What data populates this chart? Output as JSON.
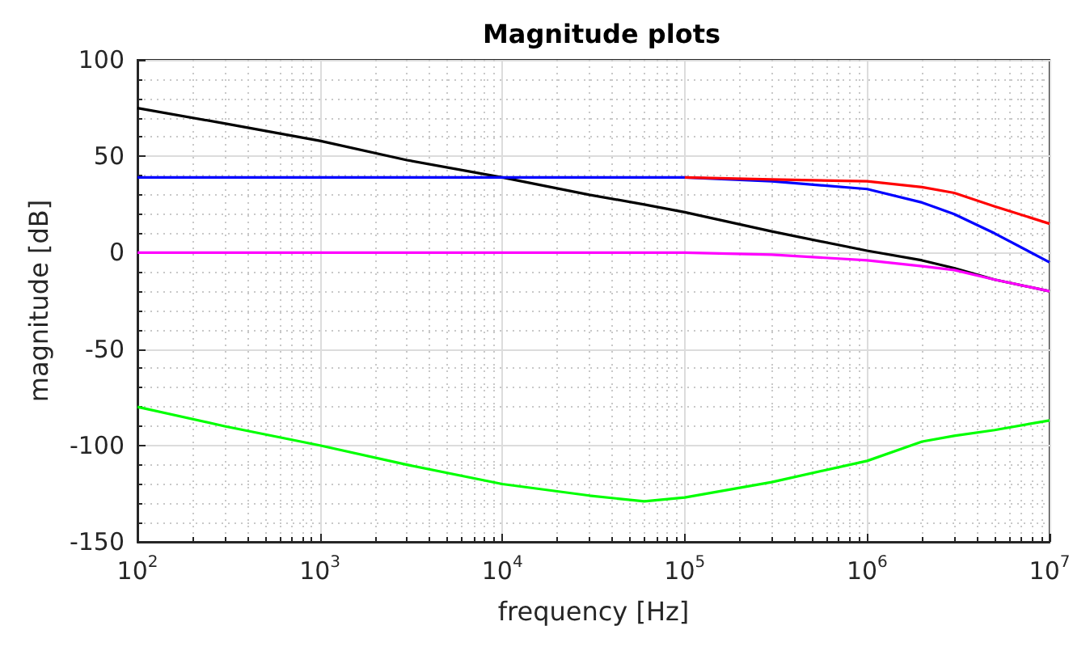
{
  "chart_data": {
    "type": "line",
    "title": "Magnitude plots",
    "xlabel": "frequency [Hz]",
    "ylabel": "magnitude [dB]",
    "log": "x",
    "grid": true,
    "marker": "none",
    "line_style": "solid",
    "xlim": [
      100,
      10000000
    ],
    "xticks": [
      {
        "value": 100,
        "label": "10$^{2}$"
      },
      {
        "value": 1000,
        "label": "10$^{3}$"
      },
      {
        "value": 10000,
        "label": "10$^{4}$"
      },
      {
        "value": 100000,
        "label": "10$^{5}$"
      },
      {
        "value": 1000000,
        "label": "10$^{6}$"
      },
      {
        "value": 10000000,
        "label": "10$^{7}$"
      }
    ],
    "ylim": [
      -150,
      100
    ],
    "yticks": [
      -150,
      -100,
      -50,
      0,
      50,
      100
    ],
    "x": [
      100,
      300,
      1000,
      3000,
      10000,
      30000,
      60000,
      100000,
      300000,
      1000000,
      2000000,
      3000000,
      5000000,
      10000000
    ],
    "series": [
      {
        "color": "#000000",
        "values": [
          75,
          67,
          58,
          48,
          39,
          30,
          25,
          21,
          11,
          1,
          -4,
          -8,
          -14,
          -20
        ]
      },
      {
        "color": "#0000ff",
        "values": [
          39,
          39,
          39,
          39,
          39,
          39,
          39,
          39,
          37,
          33,
          26,
          20,
          10,
          -5
        ]
      },
      {
        "color": "#ff0000",
        "values": [
          null,
          null,
          null,
          null,
          null,
          null,
          null,
          39,
          38,
          37,
          34,
          31,
          24,
          15
        ]
      },
      {
        "color": "#ff00ff",
        "values": [
          0,
          0,
          0,
          0,
          0,
          0,
          0,
          0,
          -1,
          -4,
          -7,
          -9,
          -14,
          -20
        ]
      },
      {
        "color": "#00ff00",
        "values": [
          -80,
          -90,
          -100,
          -110,
          -120,
          -126,
          -129,
          -127,
          -119,
          -108,
          -98,
          -95,
          -92,
          -87
        ]
      }
    ]
  }
}
